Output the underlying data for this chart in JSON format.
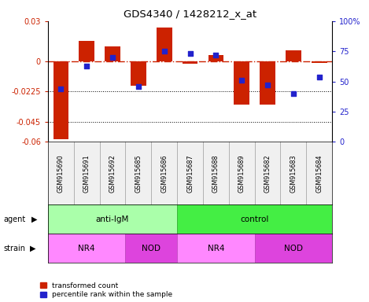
{
  "title": "GDS4340 / 1428212_x_at",
  "samples": [
    "GSM915690",
    "GSM915691",
    "GSM915692",
    "GSM915685",
    "GSM915686",
    "GSM915687",
    "GSM915688",
    "GSM915689",
    "GSM915682",
    "GSM915683",
    "GSM915684"
  ],
  "red_values": [
    -0.058,
    0.015,
    0.011,
    -0.018,
    0.025,
    -0.002,
    0.005,
    -0.032,
    -0.032,
    0.008,
    -0.001
  ],
  "blue_values": [
    44,
    63,
    70,
    46,
    75,
    73,
    72,
    51,
    47,
    40,
    54
  ],
  "ylim_left": [
    -0.06,
    0.03
  ],
  "ylim_right": [
    0,
    100
  ],
  "yticks_left": [
    0.03,
    0,
    -0.0225,
    -0.045,
    -0.06
  ],
  "yticks_right": [
    100,
    75,
    50,
    25,
    0
  ],
  "dotted_lines": [
    -0.0225,
    -0.045
  ],
  "agent_groups": [
    {
      "label": "anti-IgM",
      "start": 0,
      "end": 5,
      "color": "#AAFFAA"
    },
    {
      "label": "control",
      "start": 5,
      "end": 11,
      "color": "#44EE44"
    }
  ],
  "strain_groups": [
    {
      "label": "NR4",
      "start": 0,
      "end": 3,
      "color": "#FF88FF"
    },
    {
      "label": "NOD",
      "start": 3,
      "end": 5,
      "color": "#DD44DD"
    },
    {
      "label": "NR4",
      "start": 5,
      "end": 8,
      "color": "#FF88FF"
    },
    {
      "label": "NOD",
      "start": 8,
      "end": 11,
      "color": "#DD44DD"
    }
  ],
  "red_color": "#CC2200",
  "blue_color": "#2222CC",
  "bar_width": 0.6,
  "legend_red": "transformed count",
  "legend_blue": "percentile rank within the sample",
  "agent_border_color": "#33AA33",
  "strain_border_color": "#BB44BB",
  "label_box_color": "#DDDDDD",
  "label_box_border": "#888888"
}
